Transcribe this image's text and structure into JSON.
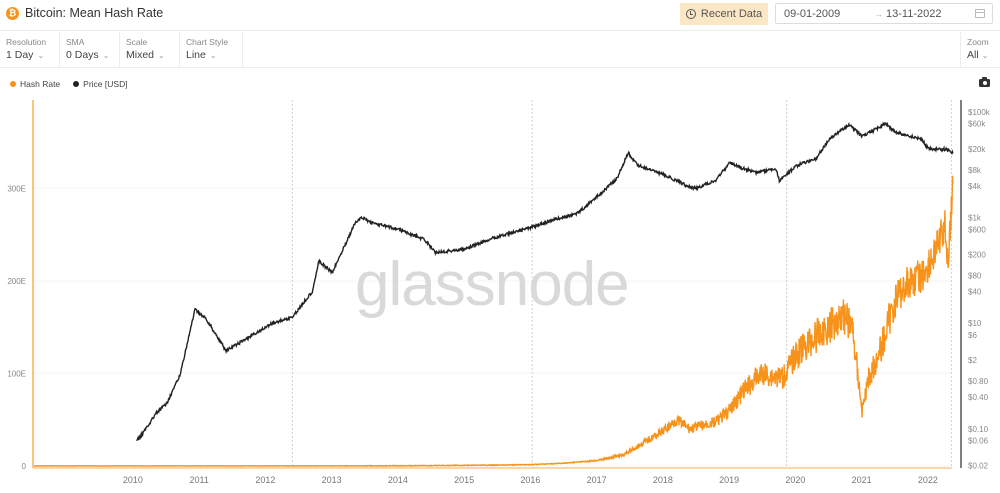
{
  "header": {
    "title": "Bitcoin: Mean Hash Rate",
    "icon": "bitcoin-icon",
    "recent_button": "Recent Data",
    "date_start": "09-01-2009",
    "date_arrow": "→",
    "date_end": "13-11-2022"
  },
  "controls": [
    {
      "label": "Resolution",
      "value": "1 Day"
    },
    {
      "label": "SMA",
      "value": "0 Days"
    },
    {
      "label": "Scale",
      "value": "Mixed"
    },
    {
      "label": "Chart Style",
      "value": "Line"
    }
  ],
  "zoom": {
    "label": "Zoom",
    "value": "All"
  },
  "chevron": "⌄",
  "legend": [
    {
      "label": "Hash Rate",
      "color": "#f7931a"
    },
    {
      "label": "Price [USD]",
      "color": "#222222"
    }
  ],
  "watermark": "glassnode",
  "chart_data": {
    "type": "line",
    "title": "Bitcoin: Mean Hash Rate",
    "xlabel": "",
    "x_ticks": [
      "2010",
      "2011",
      "2012",
      "2013",
      "2014",
      "2015",
      "2016",
      "2017",
      "2018",
      "2019",
      "2020",
      "2021",
      "2022"
    ],
    "y_left": {
      "label": "Hash Rate",
      "scale": "linear",
      "ticks": [
        "0",
        "100E",
        "200E",
        "300E"
      ],
      "range": [
        0,
        400
      ]
    },
    "y_right": {
      "label": "Price [USD]",
      "scale": "log",
      "ticks": [
        "$100k",
        "$60k",
        "$20k",
        "$8k",
        "$4k",
        "$1k",
        "$600",
        "$200",
        "$80",
        "$40",
        "$10",
        "$6",
        "$2",
        "$0.80",
        "$0.40",
        "$0.10",
        "$0.06",
        "$0.02"
      ],
      "range": [
        0.02,
        100000
      ]
    },
    "grid": true,
    "legend_position": "top-left",
    "series": [
      {
        "name": "Hash Rate",
        "unit": "EH/s",
        "axis": "left",
        "color": "#f7931a",
        "x": [
          2009.0,
          2012.0,
          2014.0,
          2015.0,
          2016.0,
          2016.5,
          2017.0,
          2017.5,
          2017.9,
          2018.2,
          2018.5,
          2018.7,
          2018.9,
          2019.0,
          2019.3,
          2019.5,
          2019.7,
          2019.9,
          2020.0,
          2020.3,
          2020.5,
          2020.8,
          2021.0,
          2021.2,
          2021.35,
          2021.5,
          2021.6,
          2021.8,
          2022.0,
          2022.2,
          2022.4,
          2022.6,
          2022.75,
          2022.8,
          2022.87
        ],
        "values": [
          0,
          0,
          0.1,
          0.4,
          1.0,
          1.5,
          3,
          6,
          12,
          25,
          38,
          50,
          40,
          42,
          48,
          60,
          80,
          95,
          100,
          95,
          120,
          140,
          150,
          165,
          150,
          60,
          95,
          130,
          180,
          200,
          205,
          230,
          260,
          220,
          305
        ]
      },
      {
        "name": "Price [USD]",
        "axis": "right",
        "color": "#222222",
        "x": [
          2010.55,
          2010.6,
          2010.85,
          2011.0,
          2011.2,
          2011.43,
          2011.6,
          2011.9,
          2012.2,
          2012.6,
          2012.9,
          2013.2,
          2013.3,
          2013.5,
          2013.85,
          2013.95,
          2014.1,
          2014.5,
          2014.9,
          2015.05,
          2015.5,
          2015.9,
          2016.5,
          2016.9,
          2017.2,
          2017.5,
          2017.8,
          2017.97,
          2018.1,
          2018.5,
          2018.9,
          2019.0,
          2019.3,
          2019.5,
          2019.7,
          2019.9,
          2020.2,
          2020.25,
          2020.5,
          2020.8,
          2021.0,
          2021.3,
          2021.5,
          2021.85,
          2022.0,
          2022.4,
          2022.5,
          2022.8,
          2022.87
        ],
        "values": [
          0.06,
          0.07,
          0.2,
          0.3,
          1,
          18,
          12,
          3,
          5,
          10,
          13,
          40,
          150,
          90,
          800,
          1000,
          800,
          600,
          380,
          220,
          250,
          400,
          650,
          950,
          1200,
          2500,
          5500,
          17000,
          10000,
          6500,
          3800,
          3600,
          5200,
          11000,
          8500,
          7200,
          8500,
          5000,
          9500,
          13000,
          30000,
          58000,
          34000,
          60000,
          42000,
          30000,
          20000,
          19500,
          16500
        ]
      }
    ]
  }
}
